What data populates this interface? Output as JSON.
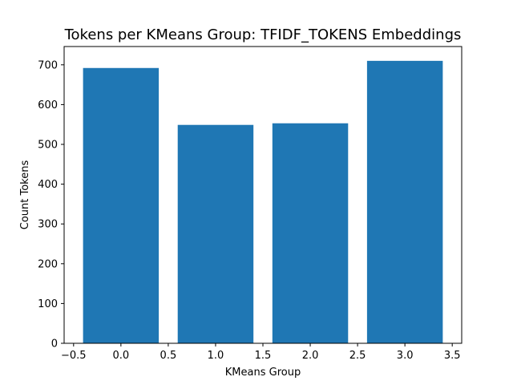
{
  "chart_data": {
    "type": "bar",
    "title": "Tokens per KMeans Group: TFIDF_TOKENS Embeddings",
    "xlabel": "KMeans Group",
    "ylabel": "Count Tokens",
    "x": [
      0,
      1,
      2,
      3
    ],
    "values": [
      692,
      549,
      553,
      710
    ],
    "bar_width": 0.8,
    "xlim": [
      -0.6,
      3.6
    ],
    "ylim": [
      0,
      746
    ],
    "xticks": [
      -0.5,
      0.0,
      0.5,
      1.0,
      1.5,
      2.0,
      2.5,
      3.0,
      3.5
    ],
    "xtick_labels": [
      "−0.5",
      "0.0",
      "0.5",
      "1.0",
      "1.5",
      "2.0",
      "2.5",
      "3.0",
      "3.5"
    ],
    "yticks": [
      0,
      100,
      200,
      300,
      400,
      500,
      600,
      700
    ],
    "ytick_labels": [
      "0",
      "100",
      "200",
      "300",
      "400",
      "500",
      "600",
      "700"
    ],
    "bar_color": "#1f77b4",
    "grid": false,
    "legend": "none"
  }
}
